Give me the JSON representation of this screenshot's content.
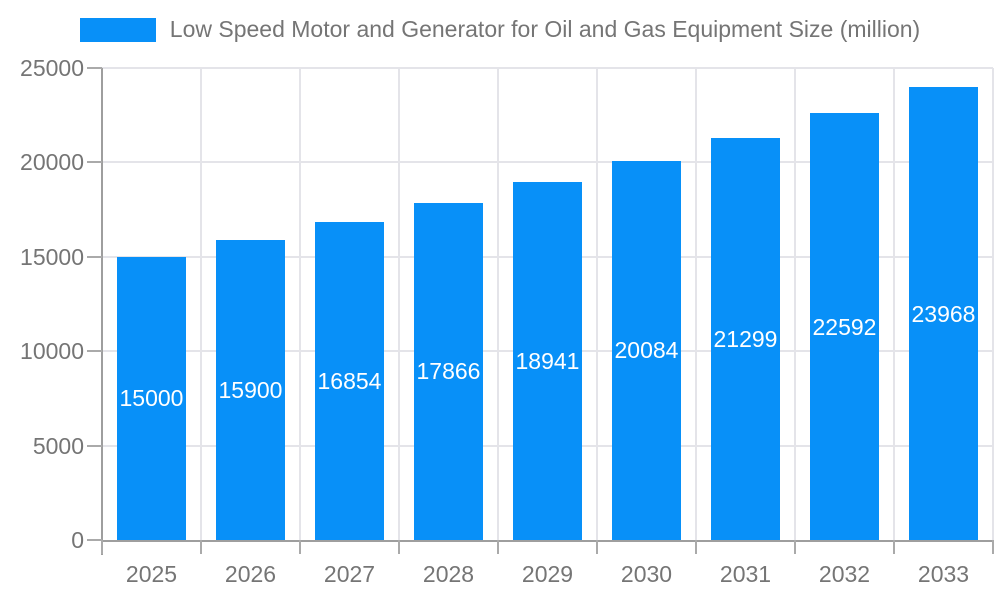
{
  "legend": {
    "label": "Low Speed Motor and Generator for Oil and Gas Equipment Size (million)"
  },
  "chart_data": {
    "type": "bar",
    "title": "Low Speed Motor and Generator for Oil and Gas Equipment Size (million)",
    "series_name": "Low Speed Motor and Generator for Oil and Gas Equipment Size (million)",
    "categories": [
      "2025",
      "2026",
      "2027",
      "2028",
      "2029",
      "2030",
      "2031",
      "2032",
      "2033"
    ],
    "values": [
      15000,
      15900,
      16854,
      17866,
      18941,
      20084,
      21299,
      22592,
      23968
    ],
    "xlabel": "",
    "ylabel": "",
    "ylim": [
      0,
      25000
    ],
    "yticks": [
      0,
      5000,
      10000,
      15000,
      20000,
      25000
    ],
    "grid": true,
    "legend_position": "top",
    "value_labels": "inside-center"
  },
  "colors": {
    "bar": "#0890f8",
    "axis_line": "#9e9e9e",
    "tick": "#aaaaaa",
    "gridline": "#e4e4e9",
    "boundary_line": "#e4e4e9",
    "axis_text": "#757575",
    "value_text": "#ffffff",
    "background": "#ffffff"
  }
}
